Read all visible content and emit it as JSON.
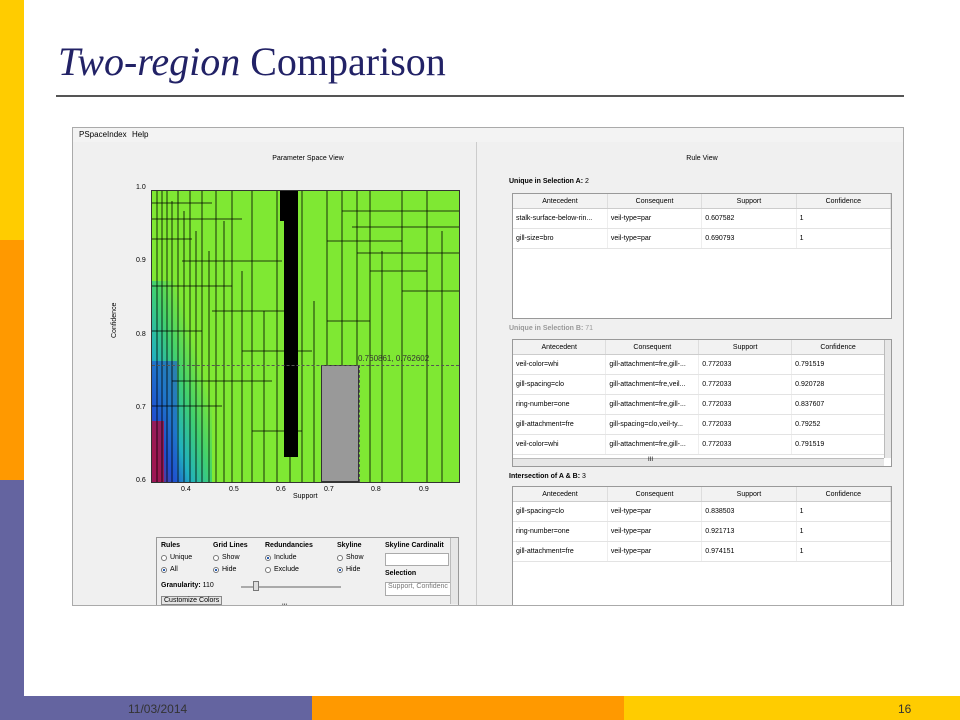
{
  "slide": {
    "title_italic": "Two-region",
    "title_rest": " Comparison",
    "date": "11/03/2014",
    "page_number": "16"
  },
  "app": {
    "menu": [
      "PSpaceIndex",
      "Help"
    ],
    "left_title": "Parameter Space View",
    "right_title": "Rule View",
    "plot": {
      "ylabel": "Confidence",
      "xlabel": "Support",
      "yticks": [
        "1.0",
        "0.9",
        "0.8",
        "0.7",
        "0.6"
      ],
      "xticks": [
        "0.4",
        "0.5",
        "0.6",
        "0.7",
        "0.8",
        "0.9"
      ],
      "cursor_text": "0.760861, 0.762602"
    },
    "controls": {
      "rules_label": "Rules",
      "rules_opts": [
        "Unique",
        "All"
      ],
      "grid_label": "Grid Lines",
      "grid_opts": [
        "Show",
        "Hide"
      ],
      "red_label": "Redundancies",
      "red_opts": [
        "Include",
        "Exclude"
      ],
      "sky_label": "Skyline",
      "sky_opts": [
        "Show",
        "Hide"
      ],
      "skycard_label": "Skyline Cardinalit",
      "selection_label": "Selection",
      "selection_value": "Support, Confidenc",
      "granularity_label": "Granularity:",
      "granularity_value": "110",
      "customize_label": "Customize Colors",
      "scroll_grip": "III"
    },
    "columns": [
      "Antecedent",
      "Consequent",
      "Support",
      "Confidence"
    ],
    "sec_a": {
      "label": "Unique in Selection A:",
      "count": "2",
      "rows": [
        [
          "stalk-surface-below-rin...",
          "veil-type=par",
          "0.607582",
          "1"
        ],
        [
          "gill-size=bro",
          "veil-type=par",
          "0.690793",
          "1"
        ]
      ]
    },
    "sec_b": {
      "label": "Unique in Selection B:",
      "count": "71",
      "rows": [
        [
          "veil-color=whi",
          "gill-attachment=fre,gill-...",
          "0.772033",
          "0.791519"
        ],
        [
          "gill-spacing=clo",
          "gill-attachment=fre,veil...",
          "0.772033",
          "0.920728"
        ],
        [
          "ring-number=one",
          "gill-attachment=fre,gill-...",
          "0.772033",
          "0.837607"
        ],
        [
          "gill-attachment=fre",
          "gill-spacing=clo,veil-ty...",
          "0.772033",
          "0.79252"
        ],
        [
          "veil-color=whi",
          "gill-attachment=fre,gill-...",
          "0.772033",
          "0.791519"
        ]
      ]
    },
    "sec_ab": {
      "label": "Intersection of A & B:",
      "count": "3",
      "rows": [
        [
          "gill-spacing=clo",
          "veil-type=par",
          "0.838503",
          "1"
        ],
        [
          "ring-number=one",
          "veil-type=par",
          "0.921713",
          "1"
        ],
        [
          "gill-attachment=fre",
          "veil-type=par",
          "0.974151",
          "1"
        ]
      ]
    }
  }
}
